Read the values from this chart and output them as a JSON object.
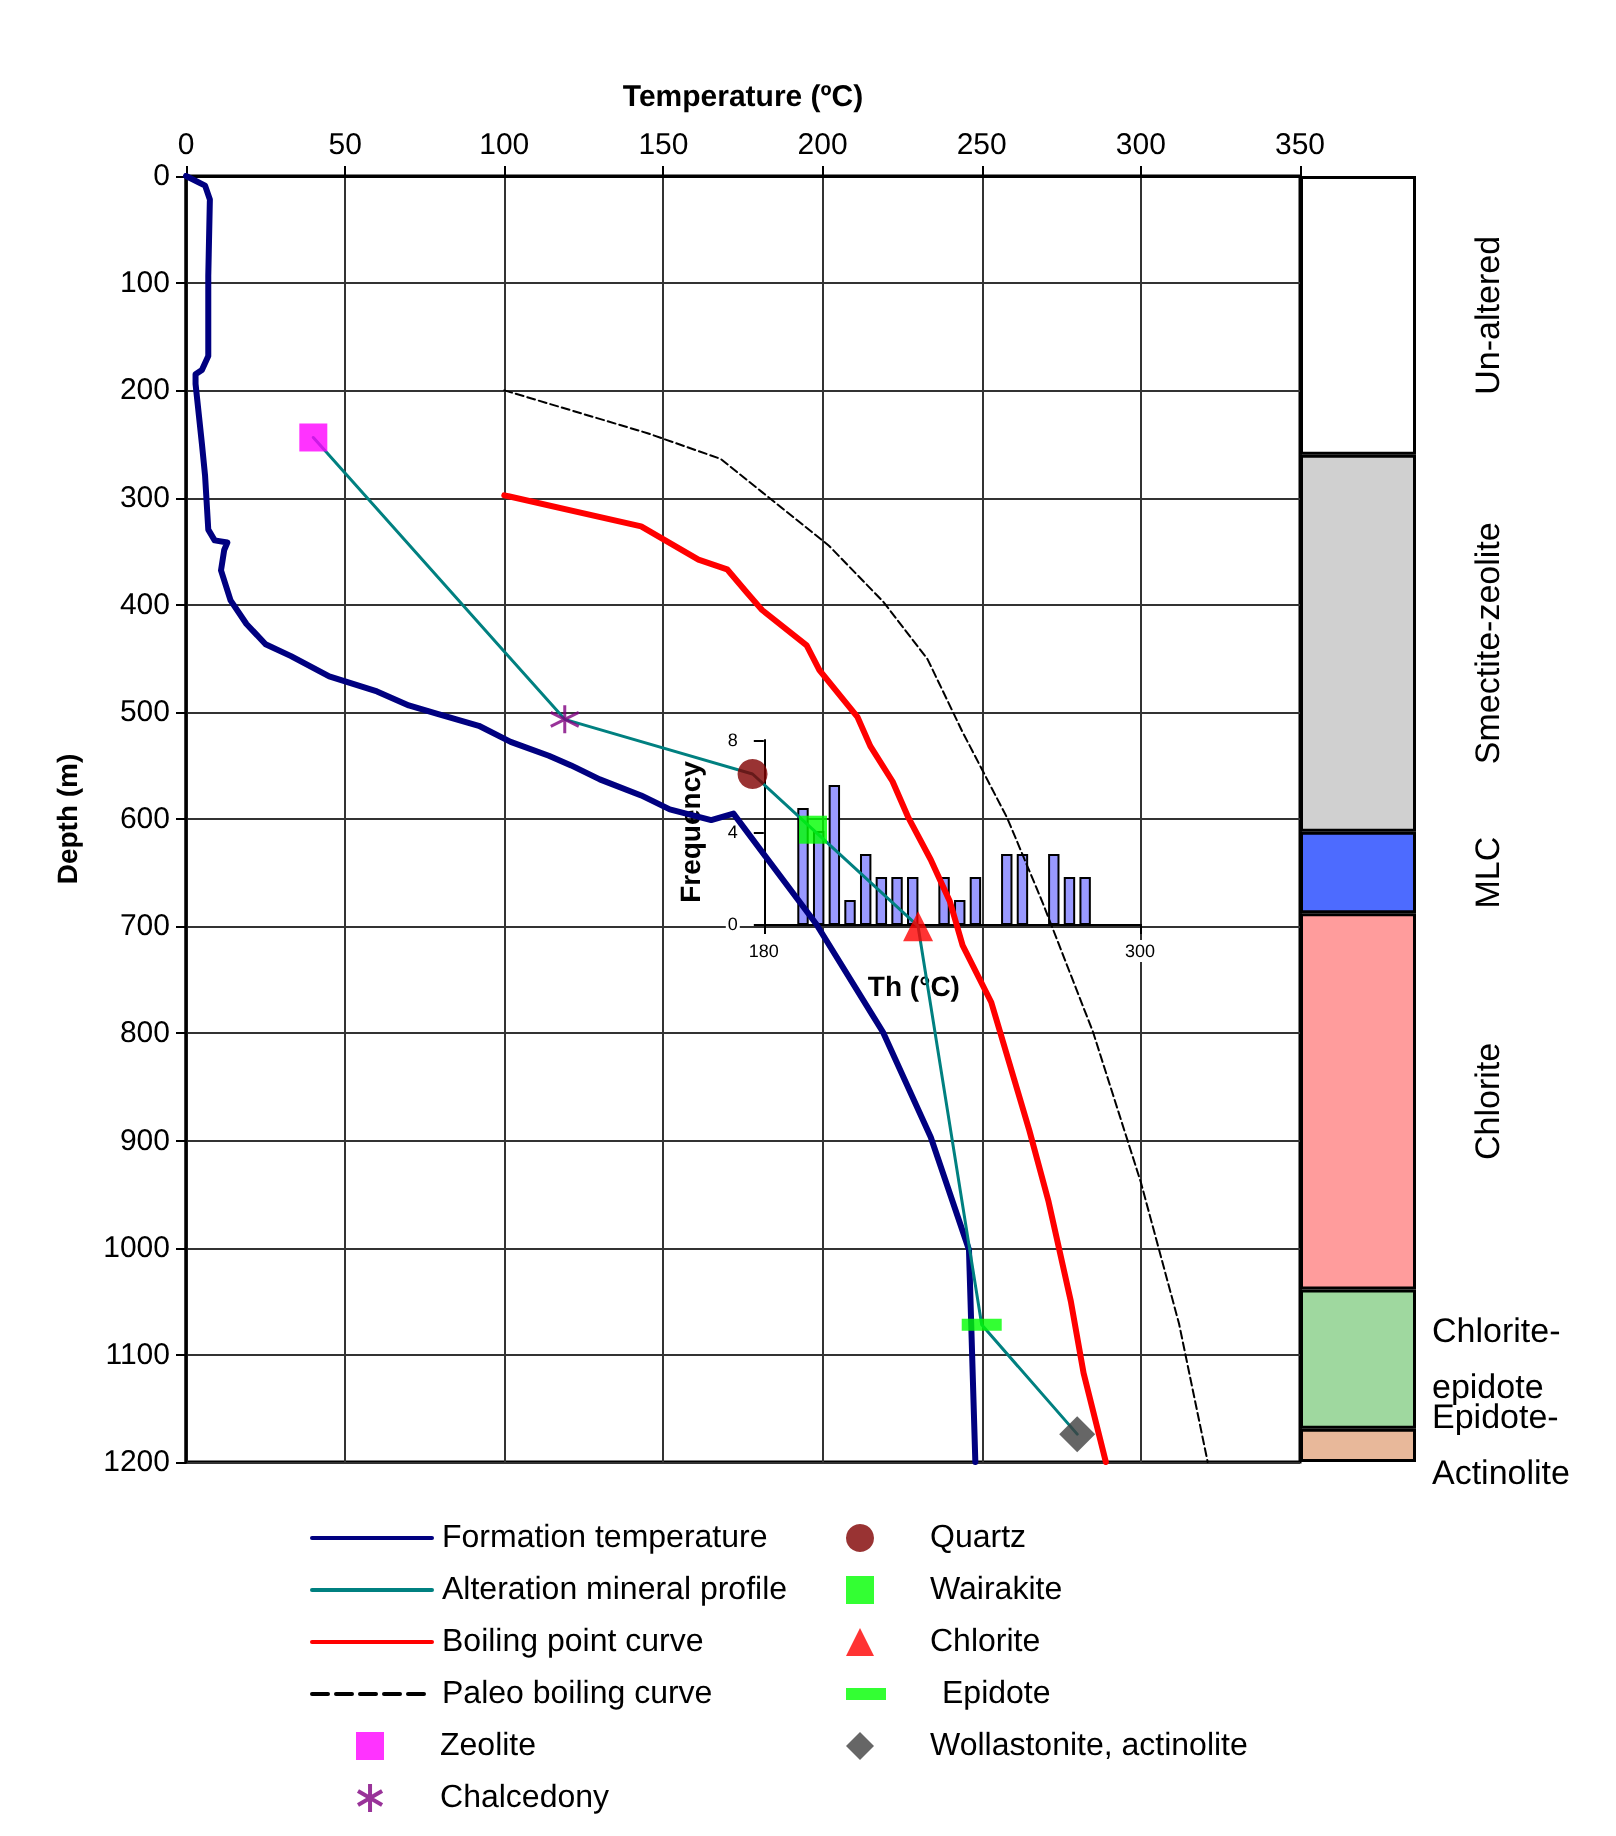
{
  "chart_data": [
    {
      "type": "line",
      "xlabel": "Temperature (ºC)",
      "ylabel": "Depth (m)",
      "xlim": [
        0,
        350
      ],
      "xticks": [
        0,
        50,
        100,
        150,
        200,
        250,
        300,
        350
      ],
      "ylim": [
        1200,
        0
      ],
      "yticks": [
        0,
        100,
        200,
        300,
        400,
        500,
        600,
        700,
        800,
        900,
        1000,
        1100,
        1200
      ],
      "grid": true,
      "legend": "bottom",
      "series": [
        {
          "name": "Formation temperature",
          "type": "line",
          "color": "#000080",
          "marker": "none",
          "line_style": "solid",
          "x": [
            0,
            6,
            7.5,
            7,
            7,
            5,
            3,
            3,
            5,
            6,
            7,
            9,
            13,
            12,
            11,
            14,
            19,
            25,
            33,
            45,
            60,
            70,
            79,
            92,
            102,
            114,
            121,
            130,
            143,
            152,
            165,
            172,
            198,
            219,
            234,
            246,
            248
          ],
          "values": [
            0,
            9,
            22,
            93,
            168,
            181,
            185,
            194,
            250,
            280,
            330,
            340,
            342,
            349,
            368,
            396,
            418,
            437,
            448,
            467,
            481,
            494,
            502,
            513,
            528,
            541,
            550,
            563,
            578,
            591,
            601,
            595,
            698,
            799,
            897,
            1002,
            1200
          ]
        },
        {
          "name": "Alteration mineral profile",
          "type": "line",
          "color": "#008080",
          "marker": "none",
          "line_style": "solid",
          "x": [
            40,
            119,
            178,
            197,
            230,
            250,
            280
          ],
          "values": [
            244,
            507,
            558,
            610,
            700,
            1072,
            1174
          ]
        },
        {
          "name": "Boiling point curve",
          "type": "line",
          "color": "#ff0000",
          "marker": "none",
          "line_style": "solid",
          "x": [
            100,
            143,
            161,
            170,
            176,
            181,
            195,
            199,
            211,
            215,
            222,
            227,
            234,
            240,
            244,
            253,
            265,
            271,
            278,
            282,
            289
          ],
          "values": [
            298,
            327,
            358,
            367,
            388,
            405,
            438,
            461,
            505,
            532,
            565,
            599,
            638,
            677,
            718,
            771,
            891,
            957,
            1050,
            1117,
            1200
          ]
        },
        {
          "name": "Paleo boiling curve",
          "type": "line",
          "color": "#000000",
          "marker": "none",
          "line_style": "dashed",
          "x": [
            100,
            145,
            168,
            181,
            202,
            219,
            233,
            244,
            258,
            269,
            285,
            300,
            312,
            321
          ],
          "values": [
            200,
            240,
            264,
            295,
            345,
            397,
            451,
            519,
            599,
            677,
            799,
            939,
            1071,
            1200
          ]
        },
        {
          "name": "Zeolite",
          "type": "scatter",
          "color": "#ff00ff",
          "marker": "square",
          "x": [
            40
          ],
          "values": [
            244
          ]
        },
        {
          "name": "Chalcedony",
          "type": "scatter",
          "color": "#800080",
          "marker": "cross",
          "x": [
            119
          ],
          "values": [
            507
          ]
        },
        {
          "name": "Quartz",
          "type": "scatter",
          "color": "#800000",
          "marker": "circle",
          "x": [
            178
          ],
          "values": [
            558
          ]
        },
        {
          "name": "Wairakite",
          "type": "scatter",
          "color": "#00ff00",
          "marker": "square",
          "x": [
            197
          ],
          "values": [
            610
          ]
        },
        {
          "name": "Chlorite",
          "type": "scatter",
          "color": "#ff0000",
          "marker": "triangle",
          "x": [
            230
          ],
          "values": [
            700
          ]
        },
        {
          "name": "Epidote",
          "type": "scatter",
          "color": "#00ff00",
          "marker": "square",
          "line_style": "solid",
          "x": [
            250
          ],
          "values": [
            1072
          ]
        },
        {
          "name": "Wollastonite, actinolite",
          "type": "scatter",
          "color": "#404040",
          "marker": "diamond",
          "x": [
            280
          ],
          "values": [
            1174
          ]
        }
      ]
    },
    {
      "type": "histogram",
      "xlabel": "Th (°C)",
      "ylabel": "Frequency",
      "color": "#9999ff",
      "xlim": [
        180,
        300
      ],
      "xticks": [
        180,
        300
      ],
      "ylim": [
        0,
        8
      ],
      "yticks": [
        0,
        4,
        8
      ],
      "bins": [
        190,
        195,
        200,
        205,
        210,
        215,
        220,
        225,
        230,
        235,
        240,
        245,
        250,
        255,
        260,
        265,
        270,
        275,
        280,
        285
      ],
      "values": [
        5,
        4,
        6,
        1,
        3,
        2,
        2,
        2,
        0,
        2,
        1,
        2,
        0,
        3,
        3,
        0,
        3,
        2,
        2
      ]
    },
    {
      "type": "bar",
      "stacked": true,
      "categories": [
        null
      ],
      "ylim": [
        1200,
        0
      ],
      "tick_labels": false,
      "series": [
        {
          "name": "Un-altered",
          "color": "#ffffff",
          "values": [
            260
          ]
        },
        {
          "name": "Smectite-zeolite",
          "color": "#d0d0d0",
          "values": [
            352
          ]
        },
        {
          "name": "MLC",
          "color": "#4d6bff",
          "values": [
            76
          ]
        },
        {
          "name": "Chlorite",
          "color": "#ff9c9c",
          "values": [
            351
          ]
        },
        {
          "name": "Chlorite-epidote",
          "color": "#9fd89f",
          "values": [
            130
          ]
        },
        {
          "name": "Epidote-Actinolite",
          "color": "#e8b89a",
          "values": [
            31
          ]
        }
      ]
    }
  ]
}
